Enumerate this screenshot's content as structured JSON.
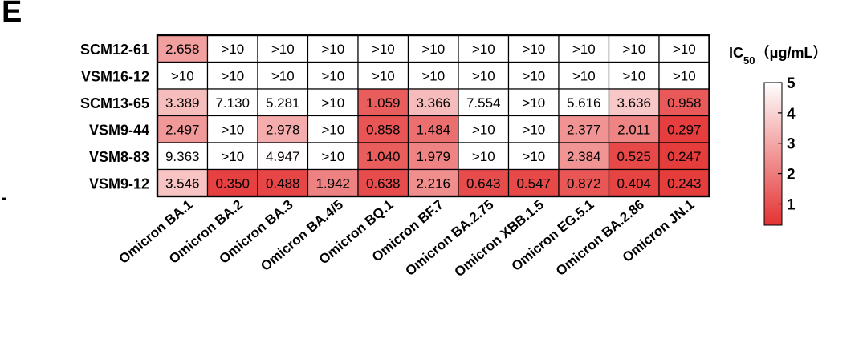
{
  "panel_label": "E",
  "stray_mark": "-",
  "chart_data": {
    "type": "heatmap",
    "rows": [
      "SCM12-61",
      "VSM16-12",
      "SCM13-65",
      "VSM9-44",
      "VSM8-83",
      "VSM9-12"
    ],
    "columns": [
      "Omicron BA.1",
      "Omicron BA.2",
      "Omicron BA.3",
      "Omicron BA.4/5",
      "Omicron BQ.1",
      "Omicron BF.7",
      "Omicron BA.2.75",
      "Omicron XBB.1.5",
      "Omicron EG.5.1",
      "Omicron BA.2.86",
      "Omicron JN.1"
    ],
    "cells": [
      [
        "2.658",
        ">10",
        ">10",
        ">10",
        ">10",
        ">10",
        ">10",
        ">10",
        ">10",
        ">10",
        ">10"
      ],
      [
        ">10",
        ">10",
        ">10",
        ">10",
        ">10",
        ">10",
        ">10",
        ">10",
        ">10",
        ">10",
        ">10"
      ],
      [
        "3.389",
        "7.130",
        "5.281",
        ">10",
        "1.059",
        "3.366",
        "7.554",
        ">10",
        "5.616",
        "3.636",
        "0.958"
      ],
      [
        "2.497",
        ">10",
        "2.978",
        ">10",
        "0.858",
        "1.484",
        ">10",
        ">10",
        "2.377",
        "2.011",
        "0.297"
      ],
      [
        "9.363",
        ">10",
        "4.947",
        ">10",
        "1.040",
        "1.979",
        ">10",
        ">10",
        "2.384",
        "0.525",
        "0.247"
      ],
      [
        "3.546",
        "0.350",
        "0.488",
        "1.942",
        "0.638",
        "2.216",
        "0.643",
        "0.547",
        "0.872",
        "0.404",
        "0.243"
      ]
    ],
    "colorscale": {
      "min": 0,
      "max": 5,
      "low_color": "#e43232",
      "high_color": "#ffffff"
    },
    "legend": {
      "title_main": "IC",
      "title_sub": "50",
      "title_unit": "（μg/mL）",
      "ticks": [
        5,
        4,
        3,
        2,
        1
      ]
    }
  }
}
